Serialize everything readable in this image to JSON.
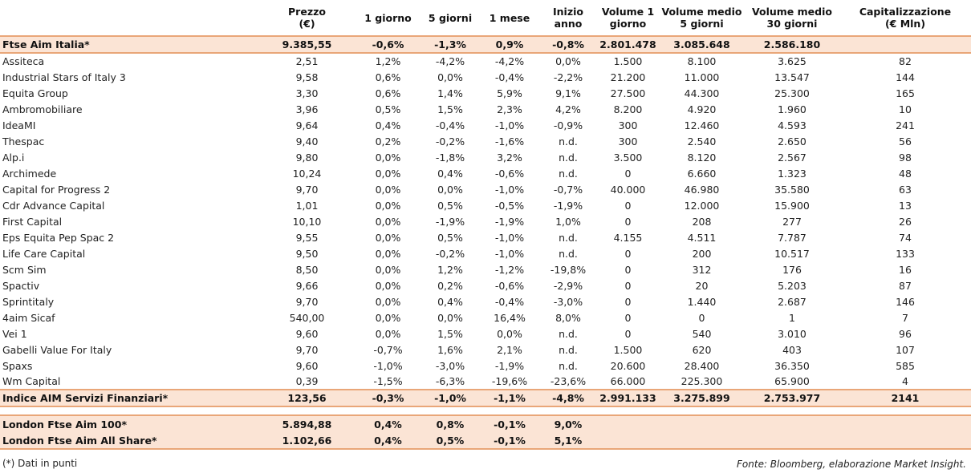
{
  "headers": [
    "",
    "Prezzo\n(€)",
    "1 giorno",
    "5 giorni",
    "1 mese",
    "Inizio anno",
    "Volume 1\ngiorno",
    "Volume medio\n5 giorni",
    "Volume medio\n30 giorni",
    "Capitalizzazione\n(€ Mln)"
  ],
  "index_row": [
    "Ftse Aim Italia*",
    "9.385,55",
    "-0,6%",
    "-1,3%",
    "0,9%",
    "-0,8%",
    "2.801.478",
    "3.085.648",
    "2.586.180",
    ""
  ],
  "rows": [
    [
      "Assiteca",
      "2,51",
      "1,2%",
      "-4,2%",
      "-4,2%",
      "0,0%",
      "1.500",
      "8.100",
      "3.625",
      "82"
    ],
    [
      "Industrial Stars of Italy 3",
      "9,58",
      "0,6%",
      "0,0%",
      "-0,4%",
      "-2,2%",
      "21.200",
      "11.000",
      "13.547",
      "144"
    ],
    [
      "Equita Group",
      "3,30",
      "0,6%",
      "1,4%",
      "5,9%",
      "9,1%",
      "27.500",
      "44.300",
      "25.300",
      "165"
    ],
    [
      "Ambromobiliare",
      "3,96",
      "0,5%",
      "1,5%",
      "2,3%",
      "4,2%",
      "8.200",
      "4.920",
      "1.960",
      "10"
    ],
    [
      "IdeaMI",
      "9,64",
      "0,4%",
      "-0,4%",
      "-1,0%",
      "-0,9%",
      "300",
      "12.460",
      "4.593",
      "241"
    ],
    [
      "Thespac",
      "9,40",
      "0,2%",
      "-0,2%",
      "-1,6%",
      "n.d.",
      "300",
      "2.540",
      "2.650",
      "56"
    ],
    [
      "Alp.i",
      "9,80",
      "0,0%",
      "-1,8%",
      "3,2%",
      "n.d.",
      "3.500",
      "8.120",
      "2.567",
      "98"
    ],
    [
      "Archimede",
      "10,24",
      "0,0%",
      "0,4%",
      "-0,6%",
      "n.d.",
      "0",
      "6.660",
      "1.323",
      "48"
    ],
    [
      "Capital for Progress 2",
      "9,70",
      "0,0%",
      "0,0%",
      "-1,0%",
      "-0,7%",
      "40.000",
      "46.980",
      "35.580",
      "63"
    ],
    [
      "Cdr Advance Capital",
      "1,01",
      "0,0%",
      "0,5%",
      "-0,5%",
      "-1,9%",
      "0",
      "12.000",
      "15.900",
      "13"
    ],
    [
      "First Capital",
      "10,10",
      "0,0%",
      "-1,9%",
      "-1,9%",
      "1,0%",
      "0",
      "208",
      "277",
      "26"
    ],
    [
      "Eps Equita Pep Spac 2",
      "9,55",
      "0,0%",
      "0,5%",
      "-1,0%",
      "n.d.",
      "4.155",
      "4.511",
      "7.787",
      "74"
    ],
    [
      "Life Care Capital",
      "9,50",
      "0,0%",
      "-0,2%",
      "-1,0%",
      "n.d.",
      "0",
      "200",
      "10.517",
      "133"
    ],
    [
      "Scm Sim",
      "8,50",
      "0,0%",
      "1,2%",
      "-1,2%",
      "-19,8%",
      "0",
      "312",
      "176",
      "16"
    ],
    [
      "Spactiv",
      "9,66",
      "0,0%",
      "0,2%",
      "-0,6%",
      "-2,9%",
      "0",
      "20",
      "5.203",
      "87"
    ],
    [
      "Sprintitaly",
      "9,70",
      "0,0%",
      "0,4%",
      "-0,4%",
      "-3,0%",
      "0",
      "1.440",
      "2.687",
      "146"
    ],
    [
      "4aim Sicaf",
      "540,00",
      "0,0%",
      "0,0%",
      "16,4%",
      "8,0%",
      "0",
      "0",
      "1",
      "7"
    ],
    [
      "Vei 1",
      "9,60",
      "0,0%",
      "1,5%",
      "0,0%",
      "n.d.",
      "0",
      "540",
      "3.010",
      "96"
    ],
    [
      "Gabelli Value For Italy",
      "9,70",
      "-0,7%",
      "1,6%",
      "2,1%",
      "n.d.",
      "1.500",
      "620",
      "403",
      "107"
    ],
    [
      "Spaxs",
      "9,60",
      "-1,0%",
      "-3,0%",
      "-1,9%",
      "n.d.",
      "20.600",
      "28.400",
      "36.350",
      "585"
    ],
    [
      "Wm Capital",
      "0,39",
      "-1,5%",
      "-6,3%",
      "-19,6%",
      "-23,6%",
      "66.000",
      "225.300",
      "65.900",
      "4"
    ]
  ],
  "sector_row": [
    "Indice AIM Servizi Finanziari*",
    "123,56",
    "-0,3%",
    "-1,0%",
    "-1,1%",
    "-4,8%",
    "2.991.133",
    "3.275.899",
    "2.753.977",
    "2141"
  ],
  "london_rows": [
    [
      "London Ftse Aim 100*",
      "5.894,88",
      "0,4%",
      "0,8%",
      "-0,1%",
      "9,0%",
      "",
      "",
      "",
      ""
    ],
    [
      "London Ftse Aim All Share*",
      "1.102,66",
      "0,4%",
      "0,5%",
      "-0,1%",
      "5,1%",
      "",
      "",
      "",
      ""
    ]
  ],
  "footnote": "(*) Dati in punti",
  "source": "Fonte: Bloomberg, elaborazione Market Insight."
}
